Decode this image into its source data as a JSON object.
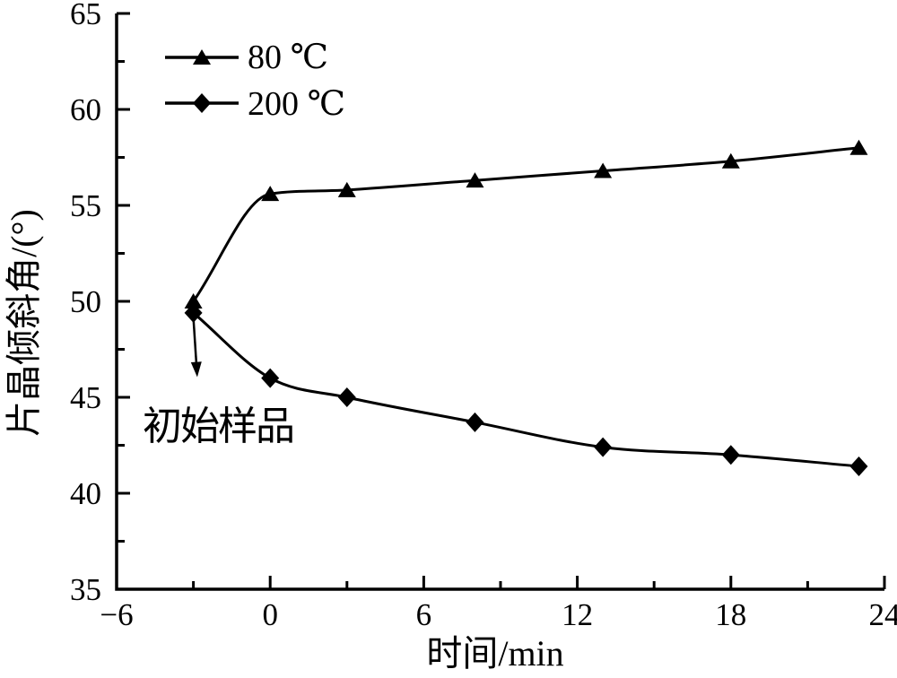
{
  "figure": {
    "background": "#ffffff",
    "ink": "#000000"
  },
  "chart_data": {
    "type": "line",
    "title": "",
    "xlabel": "时间/min",
    "ylabel": "片晶倾斜角/(°)",
    "xlim": [
      -6,
      24
    ],
    "ylim": [
      35,
      65
    ],
    "grid": false,
    "x_ticks": {
      "major": [
        -6,
        0,
        6,
        12,
        18,
        24
      ],
      "minor": [
        -3,
        3,
        9,
        15,
        21
      ],
      "labels": [
        "−6",
        "0",
        "6",
        "12",
        "18",
        "24"
      ]
    },
    "y_ticks": {
      "major": [
        35,
        40,
        45,
        50,
        55,
        60,
        65
      ],
      "minor": [
        37.5,
        42.5,
        47.5,
        52.5,
        57.5,
        62.5
      ],
      "labels": [
        "35",
        "40",
        "45",
        "50",
        "55",
        "60",
        "65"
      ]
    },
    "legend": {
      "position": "top-left"
    },
    "series": [
      {
        "name": "80 ℃",
        "marker": "triangle",
        "color": "#000000",
        "x": [
          -3,
          0,
          3,
          8,
          13,
          18,
          23
        ],
        "y": [
          50.0,
          55.6,
          55.8,
          56.3,
          56.8,
          57.3,
          58.0
        ]
      },
      {
        "name": "200 ℃",
        "marker": "diamond",
        "color": "#000000",
        "x": [
          -3,
          0,
          3,
          8,
          13,
          18,
          23
        ],
        "y": [
          49.4,
          46.0,
          45.0,
          43.7,
          42.4,
          42.0,
          41.4
        ]
      }
    ],
    "annotation": {
      "text": "初始样品",
      "arrow_from": [
        -3.0,
        49.15
      ],
      "arrow_to": [
        -2.85,
        46.05
      ]
    }
  }
}
